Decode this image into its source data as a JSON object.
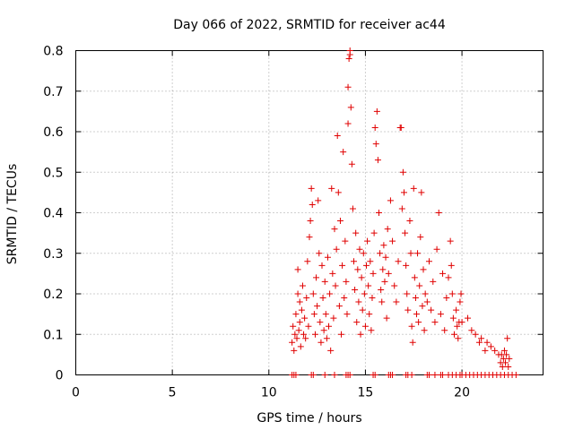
{
  "chart_data": {
    "type": "scatter",
    "title": "Day 066 of 2022, SRMTID for receiver ac44",
    "xlabel": "GPS time / hours",
    "ylabel": "SRMTID / TECUs",
    "xlim": [
      0,
      24.2
    ],
    "ylim": [
      0,
      0.8
    ],
    "xticks": [
      0,
      5,
      10,
      15,
      20
    ],
    "yticks": [
      0,
      0.1,
      0.2,
      0.3,
      0.4,
      0.5,
      0.6,
      0.7,
      0.8
    ],
    "ytick_labels": [
      "0",
      "0.1",
      "0.2",
      "0.3",
      "0.4",
      "0.5",
      "0.6",
      "0.7",
      "0.8"
    ],
    "grid": true,
    "marker": "+",
    "color": "#e00000",
    "series": [
      {
        "name": "SRMTID",
        "points": [
          [
            11.2,
            0.08
          ],
          [
            11.25,
            0.12
          ],
          [
            11.3,
            0.06
          ],
          [
            11.35,
            0.1
          ],
          [
            11.4,
            0.15
          ],
          [
            11.45,
            0.09
          ],
          [
            11.5,
            0.2
          ],
          [
            11.5,
            0.26
          ],
          [
            11.55,
            0.11
          ],
          [
            11.6,
            0.18
          ],
          [
            11.6,
            0.13
          ],
          [
            11.65,
            0.07
          ],
          [
            11.7,
            0.16
          ],
          [
            11.75,
            0.22
          ],
          [
            11.8,
            0.1
          ],
          [
            11.85,
            0.14
          ],
          [
            11.9,
            0.09
          ],
          [
            11.95,
            0.19
          ],
          [
            12.0,
            0.28
          ],
          [
            12.05,
            0.12
          ],
          [
            12.1,
            0.34
          ],
          [
            12.15,
            0.38
          ],
          [
            12.2,
            0.46
          ],
          [
            12.25,
            0.42
          ],
          [
            12.3,
            0.2
          ],
          [
            12.35,
            0.15
          ],
          [
            12.4,
            0.1
          ],
          [
            12.45,
            0.24
          ],
          [
            12.5,
            0.17
          ],
          [
            12.55,
            0.43
          ],
          [
            12.6,
            0.3
          ],
          [
            12.65,
            0.13
          ],
          [
            12.7,
            0.08
          ],
          [
            12.75,
            0.27
          ],
          [
            12.8,
            0.19
          ],
          [
            12.85,
            0.11
          ],
          [
            12.9,
            0.23
          ],
          [
            12.95,
            0.15
          ],
          [
            13.0,
            0.09
          ],
          [
            13.05,
            0.29
          ],
          [
            13.1,
            0.12
          ],
          [
            13.15,
            0.2
          ],
          [
            13.2,
            0.06
          ],
          [
            13.25,
            0.46
          ],
          [
            13.3,
            0.25
          ],
          [
            13.35,
            0.14
          ],
          [
            13.4,
            0.36
          ],
          [
            13.45,
            0.22
          ],
          [
            13.5,
            0.31
          ],
          [
            13.55,
            0.59
          ],
          [
            13.6,
            0.45
          ],
          [
            13.65,
            0.17
          ],
          [
            13.7,
            0.38
          ],
          [
            13.75,
            0.1
          ],
          [
            13.8,
            0.27
          ],
          [
            13.85,
            0.55
          ],
          [
            13.9,
            0.19
          ],
          [
            13.95,
            0.33
          ],
          [
            14.0,
            0.23
          ],
          [
            14.05,
            0.15
          ],
          [
            14.1,
            0.62
          ],
          [
            14.1,
            0.71
          ],
          [
            14.15,
            0.78
          ],
          [
            14.2,
            0.79
          ],
          [
            14.2,
            0.8
          ],
          [
            14.25,
            0.66
          ],
          [
            14.3,
            0.52
          ],
          [
            14.35,
            0.41
          ],
          [
            14.4,
            0.28
          ],
          [
            14.45,
            0.21
          ],
          [
            14.5,
            0.35
          ],
          [
            14.55,
            0.13
          ],
          [
            14.6,
            0.26
          ],
          [
            14.65,
            0.18
          ],
          [
            14.7,
            0.31
          ],
          [
            14.75,
            0.1
          ],
          [
            14.8,
            0.24
          ],
          [
            14.85,
            0.16
          ],
          [
            14.9,
            0.3
          ],
          [
            14.95,
            0.2
          ],
          [
            15.0,
            0.12
          ],
          [
            15.05,
            0.27
          ],
          [
            15.1,
            0.33
          ],
          [
            15.15,
            0.22
          ],
          [
            15.2,
            0.15
          ],
          [
            15.25,
            0.28
          ],
          [
            15.3,
            0.11
          ],
          [
            15.35,
            0.19
          ],
          [
            15.4,
            0.25
          ],
          [
            15.45,
            0.35
          ],
          [
            15.5,
            0.61
          ],
          [
            15.55,
            0.57
          ],
          [
            15.6,
            0.65
          ],
          [
            15.65,
            0.53
          ],
          [
            15.7,
            0.4
          ],
          [
            15.75,
            0.3
          ],
          [
            15.8,
            0.21
          ],
          [
            15.85,
            0.18
          ],
          [
            15.9,
            0.26
          ],
          [
            15.95,
            0.32
          ],
          [
            16.0,
            0.23
          ],
          [
            16.05,
            0.29
          ],
          [
            16.1,
            0.14
          ],
          [
            16.15,
            0.36
          ],
          [
            16.2,
            0.25
          ],
          [
            16.3,
            0.43
          ],
          [
            16.4,
            0.33
          ],
          [
            16.5,
            0.22
          ],
          [
            16.6,
            0.18
          ],
          [
            16.7,
            0.28
          ],
          [
            16.8,
            0.61
          ],
          [
            16.85,
            0.61
          ],
          [
            16.9,
            0.41
          ],
          [
            16.95,
            0.5
          ],
          [
            17.0,
            0.45
          ],
          [
            17.05,
            0.35
          ],
          [
            17.1,
            0.27
          ],
          [
            17.15,
            0.2
          ],
          [
            17.2,
            0.16
          ],
          [
            17.3,
            0.38
          ],
          [
            17.35,
            0.3
          ],
          [
            17.4,
            0.12
          ],
          [
            17.45,
            0.08
          ],
          [
            17.5,
            0.46
          ],
          [
            17.55,
            0.24
          ],
          [
            17.6,
            0.19
          ],
          [
            17.65,
            0.15
          ],
          [
            17.7,
            0.3
          ],
          [
            17.75,
            0.13
          ],
          [
            17.8,
            0.22
          ],
          [
            17.85,
            0.34
          ],
          [
            17.9,
            0.45
          ],
          [
            17.95,
            0.17
          ],
          [
            18.0,
            0.26
          ],
          [
            18.05,
            0.11
          ],
          [
            18.1,
            0.2
          ],
          [
            18.2,
            0.18
          ],
          [
            18.3,
            0.28
          ],
          [
            18.4,
            0.16
          ],
          [
            18.5,
            0.23
          ],
          [
            18.6,
            0.13
          ],
          [
            18.7,
            0.31
          ],
          [
            18.8,
            0.4
          ],
          [
            18.9,
            0.15
          ],
          [
            19.0,
            0.25
          ],
          [
            19.1,
            0.11
          ],
          [
            19.2,
            0.19
          ],
          [
            19.3,
            0.24
          ],
          [
            19.4,
            0.33
          ],
          [
            19.45,
            0.27
          ],
          [
            19.5,
            0.2
          ],
          [
            19.55,
            0.14
          ],
          [
            19.6,
            0.1
          ],
          [
            19.7,
            0.16
          ],
          [
            19.75,
            0.12
          ],
          [
            19.8,
            0.09
          ],
          [
            19.85,
            0.13
          ],
          [
            19.9,
            0.18
          ],
          [
            19.95,
            0.2
          ],
          [
            20.0,
            0.13
          ],
          [
            20.3,
            0.14
          ],
          [
            20.5,
            0.11
          ],
          [
            20.7,
            0.1
          ],
          [
            20.9,
            0.08
          ],
          [
            21.0,
            0.09
          ],
          [
            21.2,
            0.06
          ],
          [
            21.3,
            0.08
          ],
          [
            21.5,
            0.07
          ],
          [
            21.7,
            0.06
          ],
          [
            21.9,
            0.05
          ],
          [
            22.0,
            0.03
          ],
          [
            22.05,
            0.05
          ],
          [
            22.1,
            0.02
          ],
          [
            22.15,
            0.04
          ],
          [
            22.2,
            0.06
          ],
          [
            22.25,
            0.03
          ],
          [
            22.3,
            0.05
          ],
          [
            22.35,
            0.09
          ],
          [
            22.4,
            0.02
          ],
          [
            22.45,
            0.04
          ],
          [
            11.2,
            0
          ],
          [
            11.3,
            0
          ],
          [
            11.4,
            0
          ],
          [
            12.2,
            0
          ],
          [
            12.3,
            0
          ],
          [
            12.9,
            0
          ],
          [
            13.4,
            0
          ],
          [
            14.0,
            0
          ],
          [
            14.1,
            0
          ],
          [
            14.2,
            0
          ],
          [
            15.4,
            0
          ],
          [
            15.5,
            0
          ],
          [
            16.2,
            0
          ],
          [
            16.3,
            0
          ],
          [
            16.4,
            0
          ],
          [
            17.1,
            0
          ],
          [
            17.2,
            0
          ],
          [
            17.4,
            0
          ],
          [
            18.2,
            0
          ],
          [
            18.3,
            0
          ],
          [
            18.6,
            0
          ],
          [
            18.9,
            0
          ],
          [
            19.0,
            0
          ],
          [
            19.3,
            0
          ],
          [
            19.5,
            0
          ],
          [
            19.7,
            0
          ],
          [
            19.9,
            0
          ],
          [
            20.0,
            0
          ],
          [
            20.2,
            0
          ],
          [
            20.4,
            0
          ],
          [
            20.6,
            0
          ],
          [
            20.8,
            0
          ],
          [
            21.0,
            0
          ],
          [
            21.2,
            0
          ],
          [
            21.4,
            0
          ],
          [
            21.6,
            0
          ],
          [
            21.8,
            0
          ],
          [
            22.0,
            0
          ],
          [
            22.2,
            0
          ],
          [
            22.4,
            0
          ],
          [
            22.6,
            0
          ],
          [
            22.8,
            0
          ]
        ]
      }
    ]
  }
}
